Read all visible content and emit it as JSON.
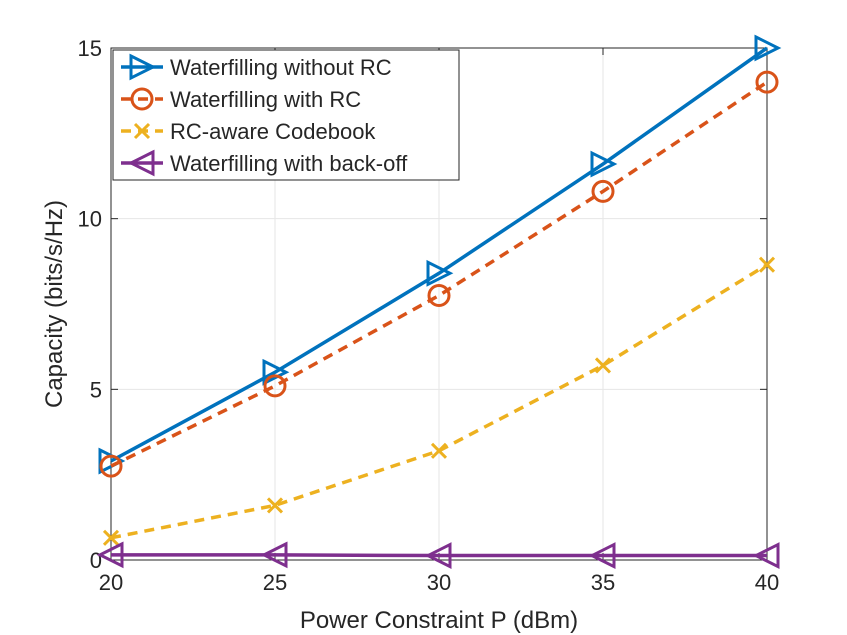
{
  "chart_data": {
    "type": "line",
    "title": "",
    "xlabel": "Power Constraint P (dBm)",
    "ylabel": "Capacity (bits/s/Hz)",
    "x": [
      20,
      25,
      30,
      35,
      40
    ],
    "xlim": [
      20,
      40
    ],
    "ylim": [
      0,
      15
    ],
    "xticks": [
      20,
      25,
      30,
      35,
      40
    ],
    "yticks": [
      0,
      5,
      10,
      15
    ],
    "grid": true,
    "legend_position": "top-left",
    "series": [
      {
        "name": "Waterfilling without RC",
        "values": [
          2.9,
          5.5,
          8.4,
          11.6,
          15.0
        ],
        "color": "#0072BD",
        "marker": "triangle-right",
        "linestyle": "solid"
      },
      {
        "name": "Waterfilling with RC",
        "values": [
          2.75,
          5.1,
          7.75,
          10.8,
          14.0
        ],
        "color": "#D95319",
        "marker": "circle",
        "linestyle": "dashed"
      },
      {
        "name": "RC-aware Codebook",
        "values": [
          0.65,
          1.6,
          3.2,
          5.7,
          8.65
        ],
        "color": "#EDB120",
        "marker": "x",
        "linestyle": "dashed"
      },
      {
        "name": "Waterfilling with back-off",
        "values": [
          0.15,
          0.15,
          0.13,
          0.13,
          0.13
        ],
        "color": "#7E2F8E",
        "marker": "triangle-left",
        "linestyle": "solid"
      }
    ]
  }
}
